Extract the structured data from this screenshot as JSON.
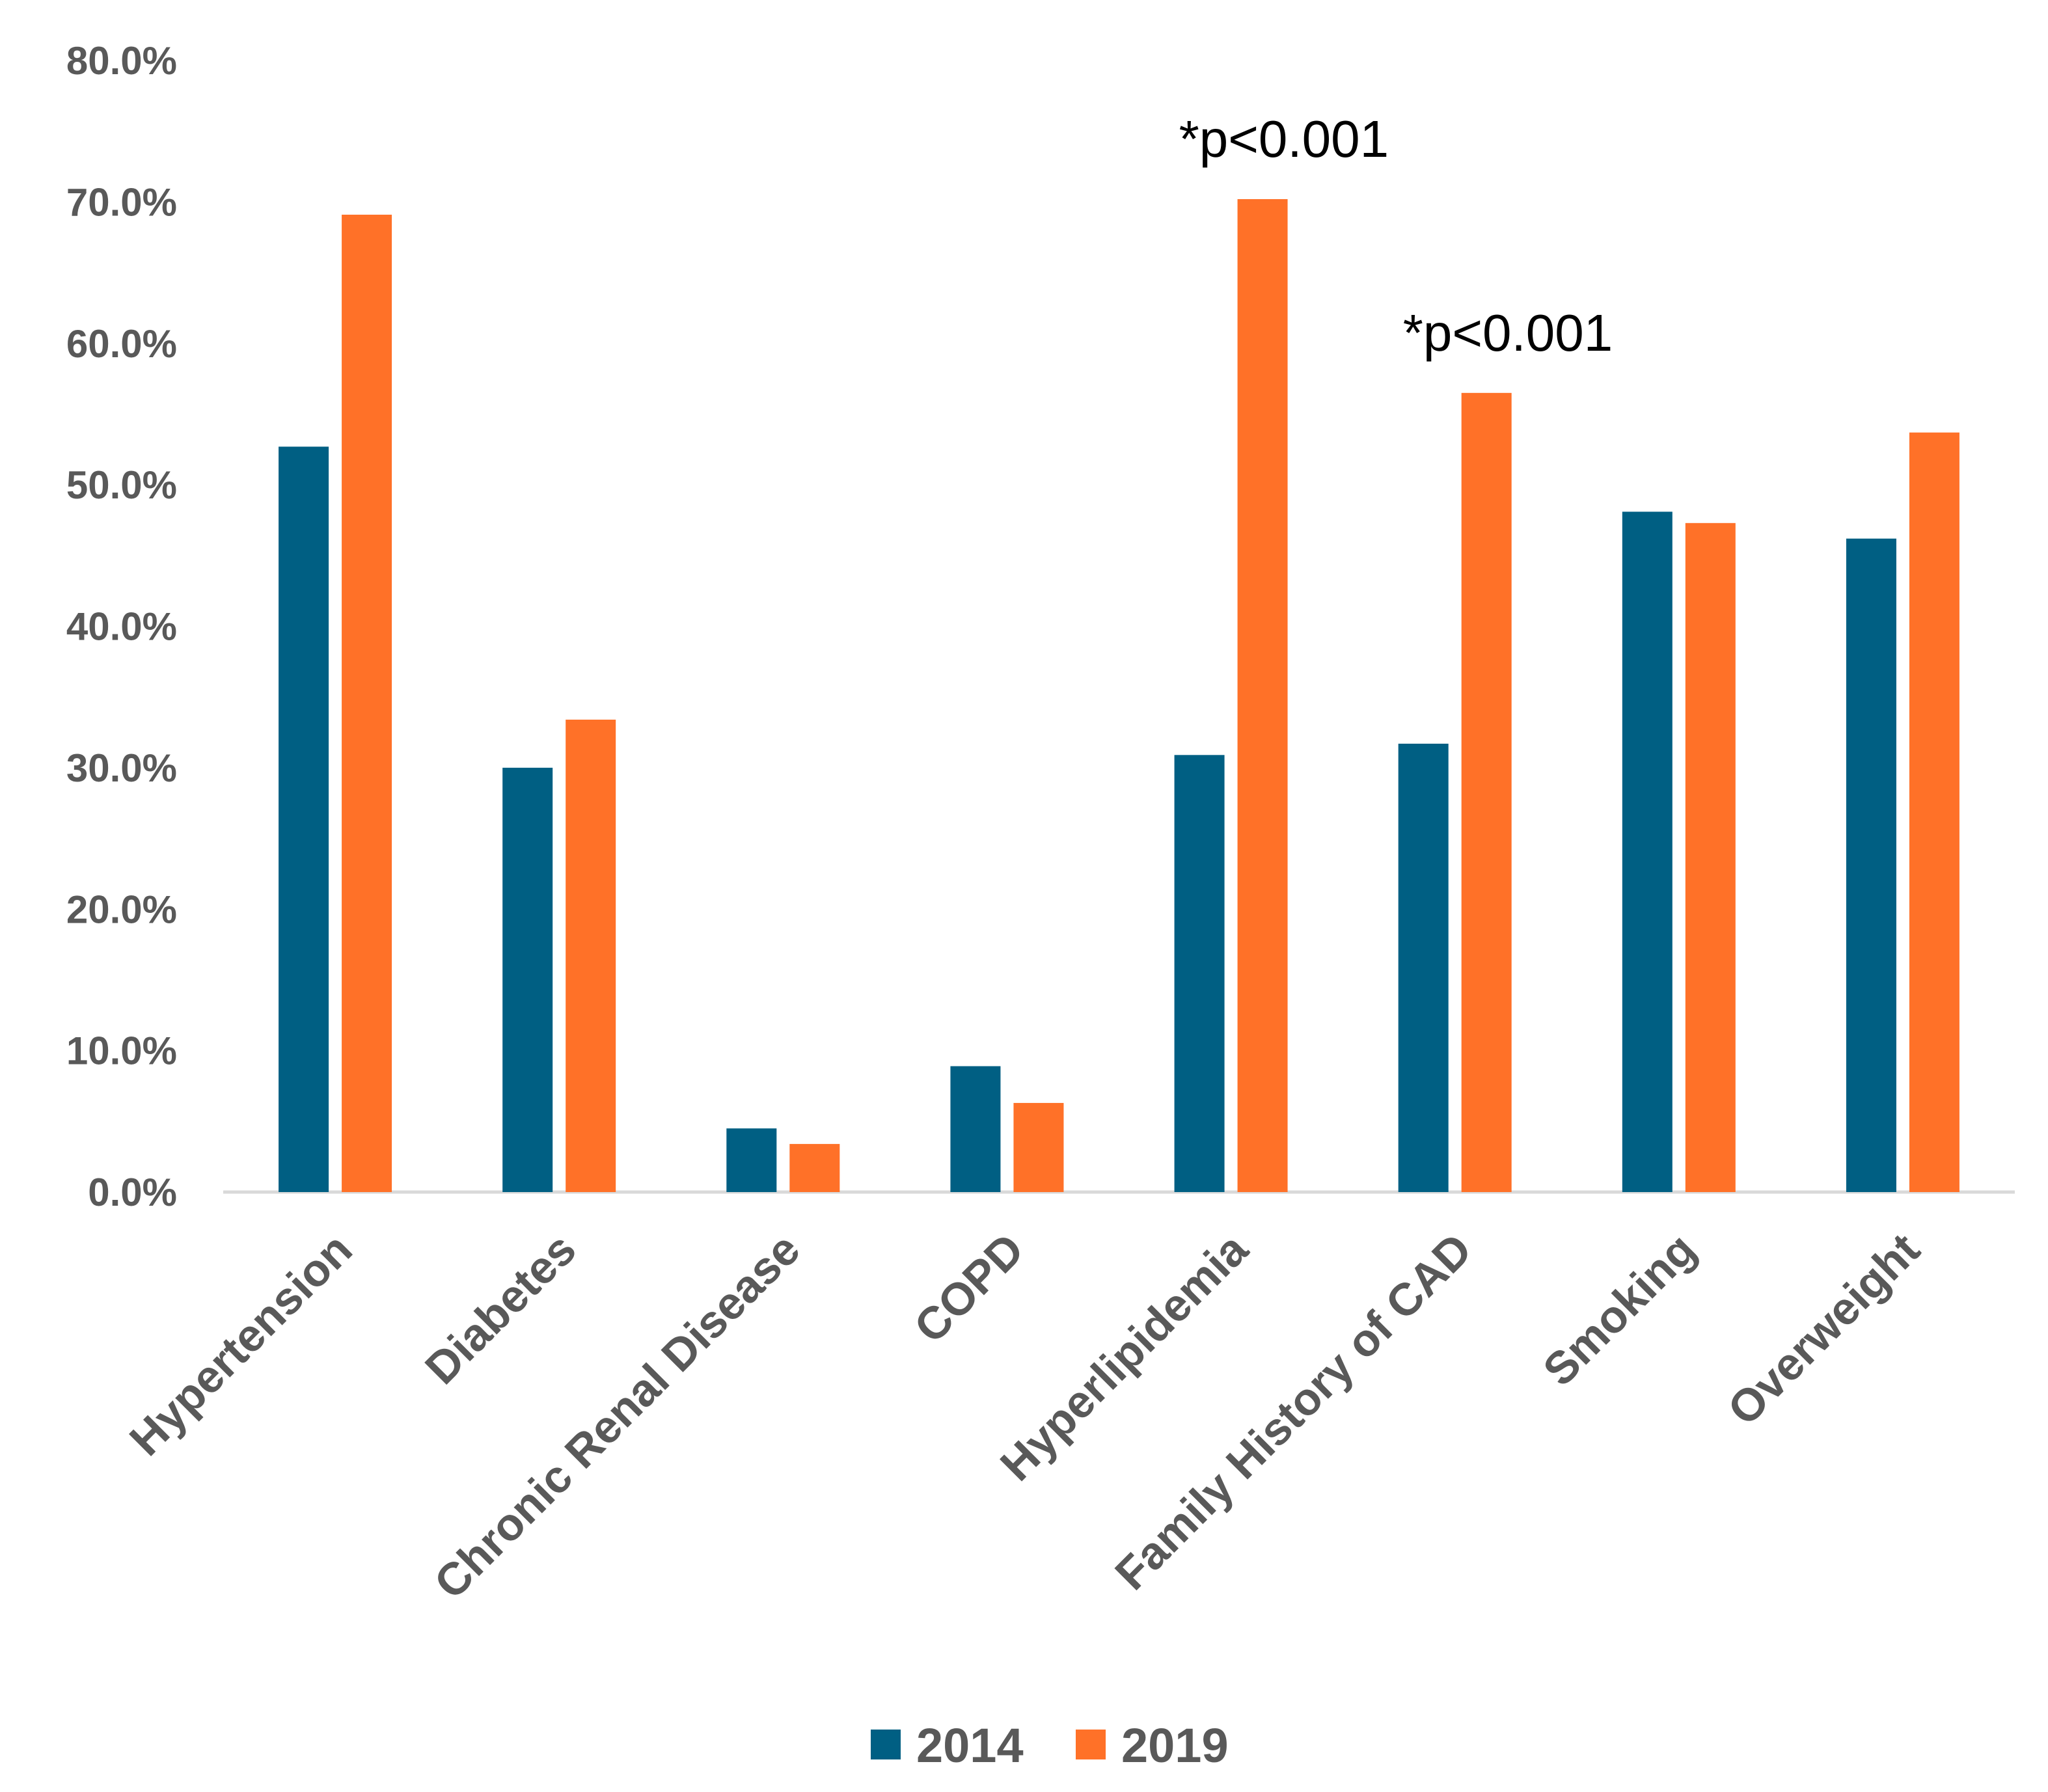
{
  "chart_data": {
    "type": "bar",
    "title": "",
    "xlabel": "",
    "ylabel": "",
    "ylim": [
      0,
      80
    ],
    "yticks": [
      "0.0%",
      "10.0%",
      "20.0%",
      "30.0%",
      "40.0%",
      "50.0%",
      "60.0%",
      "70.0%",
      "80.0%"
    ],
    "grid": false,
    "legend_position": "bottom",
    "categories": [
      "Hypertension",
      "Diabetes",
      "Chronic Renal Disease",
      "COPD",
      "Hyperlipidemia",
      "Family History of CAD",
      "Smoking",
      "Overweight"
    ],
    "series": [
      {
        "name": "2014",
        "color": "#005F83",
        "values": [
          52.7,
          30.0,
          4.5,
          8.9,
          30.9,
          31.7,
          48.1,
          46.2
        ]
      },
      {
        "name": "2019",
        "color": "#FF7128",
        "values": [
          69.1,
          33.4,
          3.4,
          6.3,
          70.2,
          56.5,
          47.3,
          53.7
        ]
      }
    ],
    "annotations": [
      {
        "text": "*p<0.001",
        "category": "Hyperlipidemia"
      },
      {
        "text": "*p<0.001",
        "category": "Family History of CAD"
      }
    ]
  }
}
